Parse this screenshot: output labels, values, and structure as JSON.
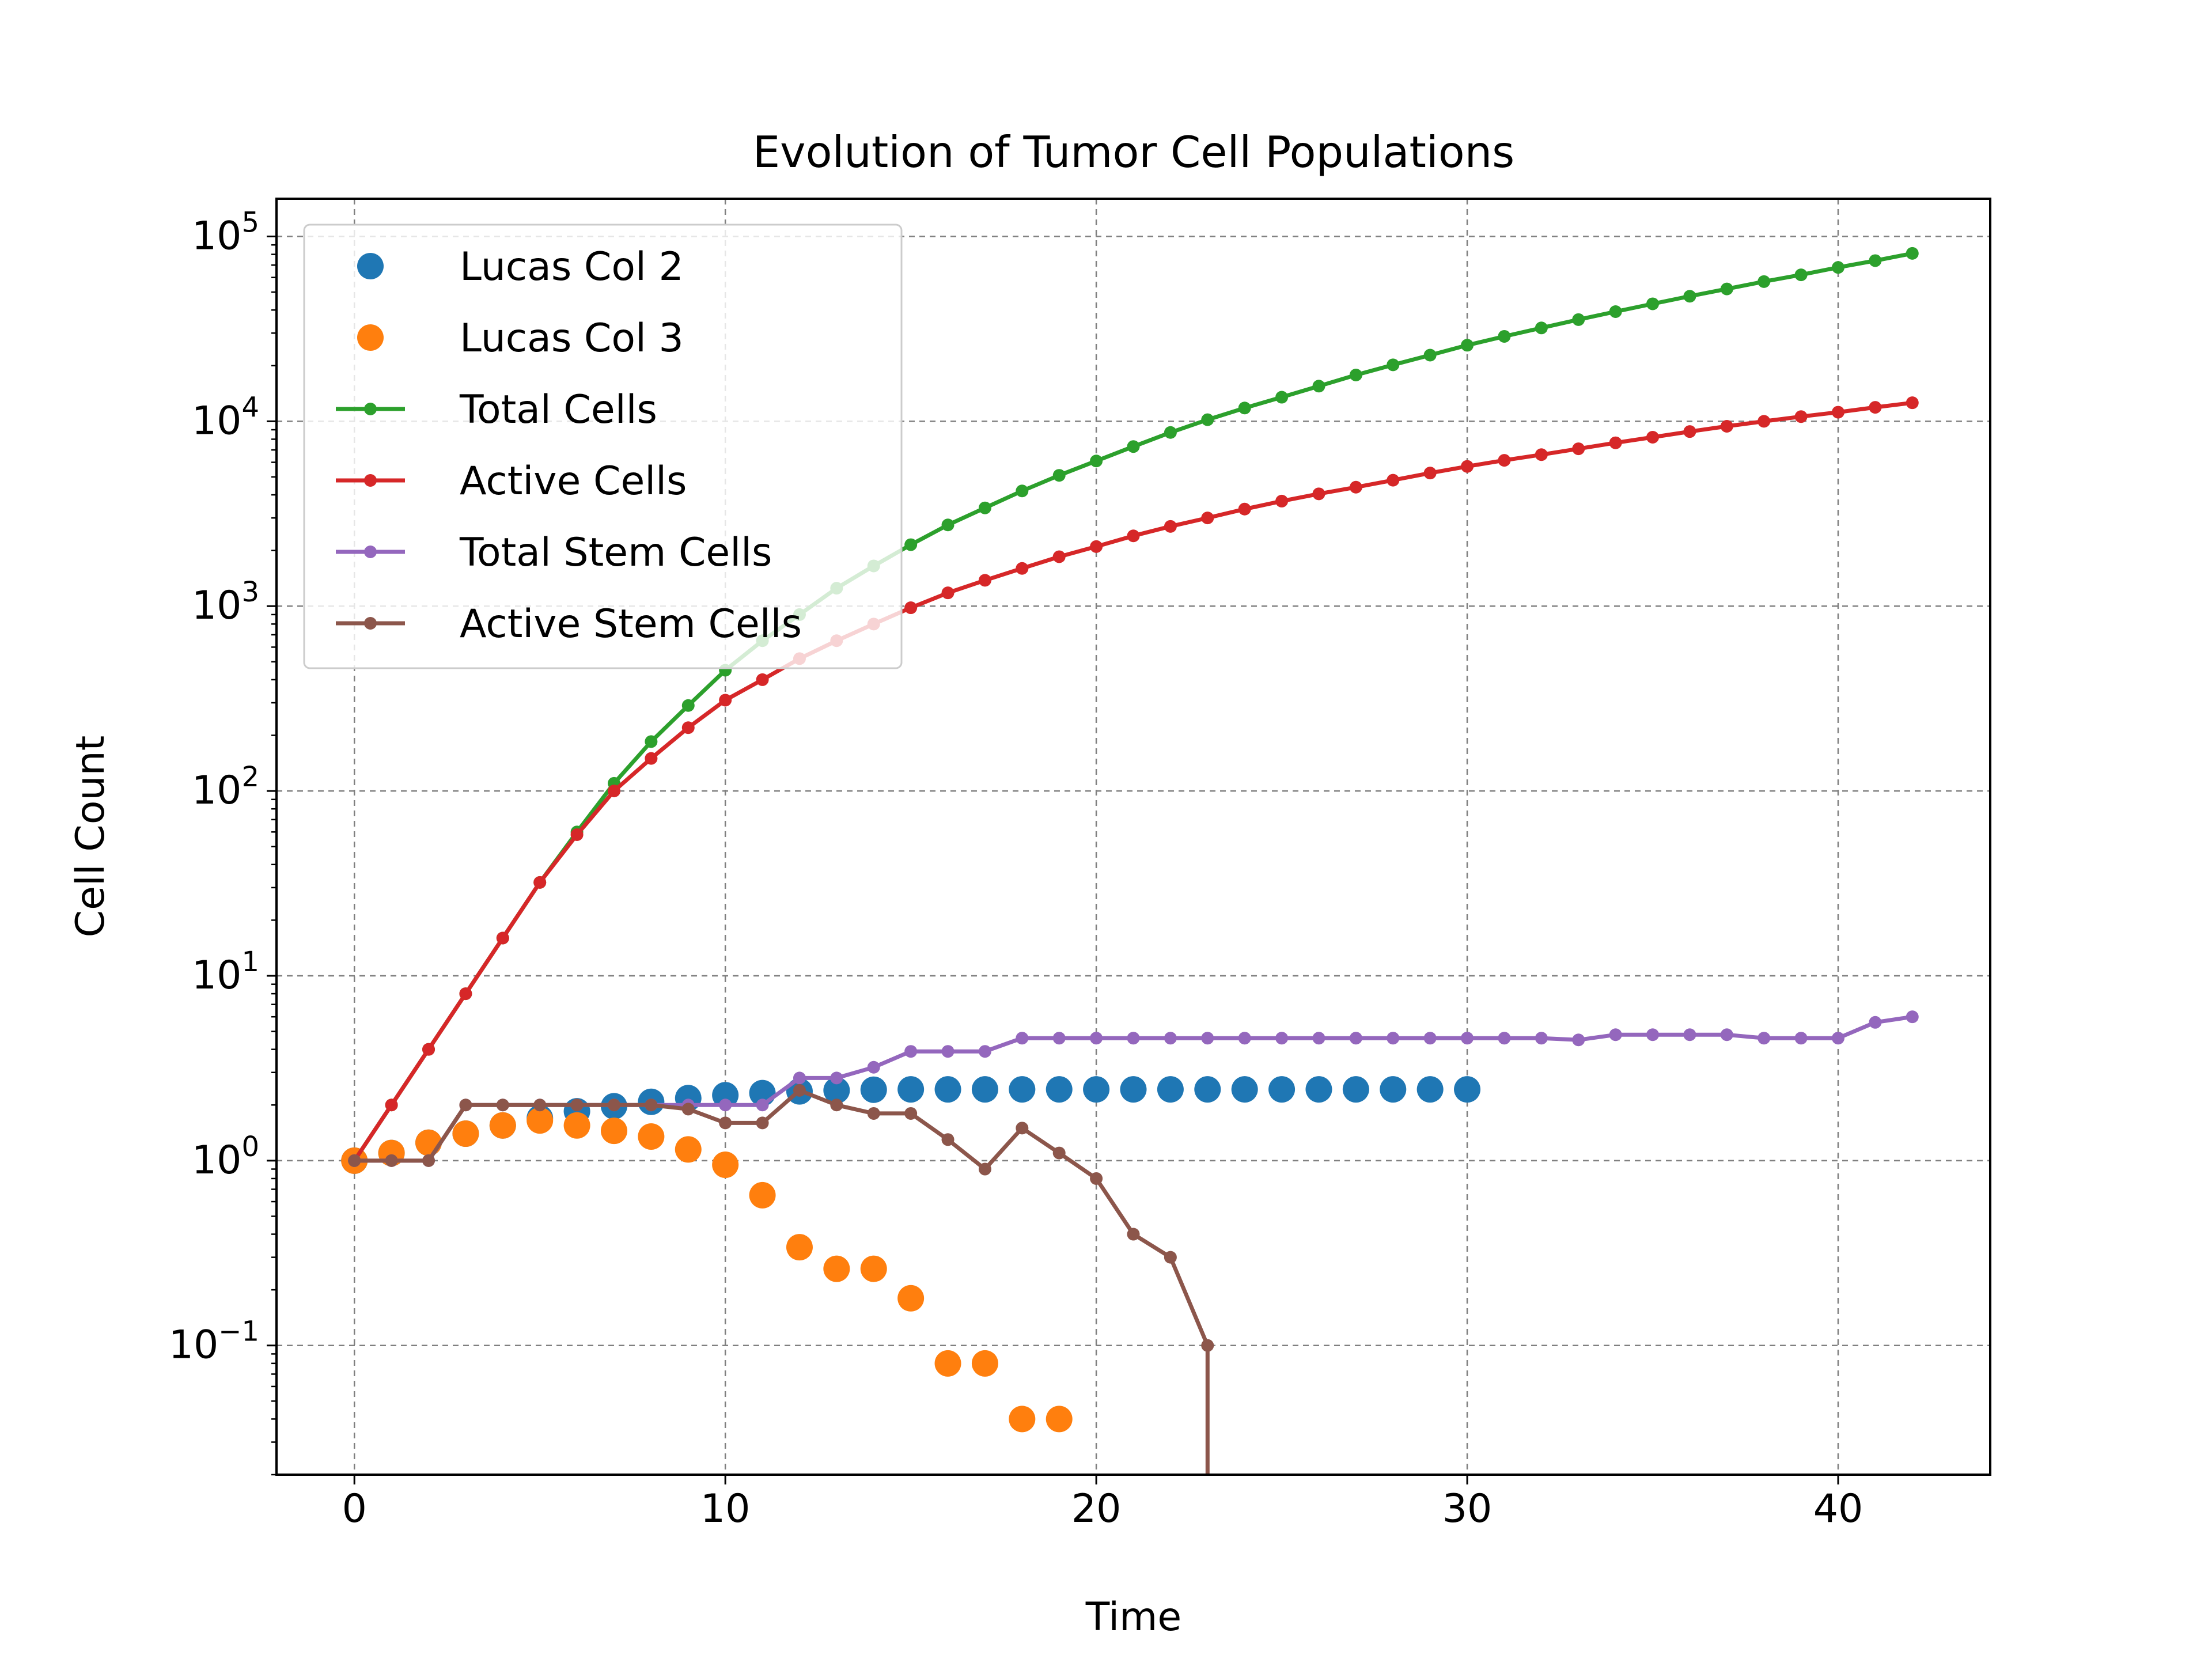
{
  "chart_data": {
    "type": "line",
    "title": "Evolution of Tumor Cell Populations",
    "xlabel": "Time",
    "ylabel": "Cell Count",
    "xlim": [
      -2.1,
      44.1
    ],
    "ylim": [
      0.02,
      160000
    ],
    "yscale": "log",
    "grid": true,
    "legend_position": "top-left",
    "x_ticks": [
      0,
      10,
      20,
      30,
      40
    ],
    "y_ticks": [
      {
        "value": 100000,
        "base": "10",
        "exp": "5"
      },
      {
        "value": 10000,
        "base": "10",
        "exp": "4"
      },
      {
        "value": 1000,
        "base": "10",
        "exp": "3"
      },
      {
        "value": 100,
        "base": "10",
        "exp": "2"
      },
      {
        "value": 10,
        "base": "10",
        "exp": "1"
      },
      {
        "value": 1,
        "base": "10",
        "exp": "0"
      },
      {
        "value": 0.1,
        "base": "10",
        "exp": "−1"
      }
    ],
    "series": [
      {
        "name": "Lucas Col 2",
        "style": "markers",
        "color": "#1f77b4",
        "x": [
          0,
          1,
          2,
          3,
          4,
          5,
          6,
          7,
          8,
          9,
          10,
          11,
          12,
          13,
          14,
          15,
          16,
          17,
          18,
          19,
          20,
          21,
          22,
          23,
          24,
          25,
          26,
          27,
          28,
          29,
          30
        ],
        "y": [
          1,
          1.1,
          1.25,
          1.4,
          1.55,
          1.7,
          1.85,
          1.97,
          2.08,
          2.18,
          2.26,
          2.32,
          2.37,
          2.4,
          2.42,
          2.43,
          2.43,
          2.43,
          2.43,
          2.43,
          2.43,
          2.43,
          2.43,
          2.43,
          2.43,
          2.43,
          2.43,
          2.43,
          2.43,
          2.43,
          2.43
        ]
      },
      {
        "name": "Lucas Col 3",
        "style": "markers",
        "color": "#ff7f0e",
        "x": [
          0,
          1,
          2,
          3,
          4,
          5,
          6,
          7,
          8,
          9,
          10,
          11,
          12,
          13,
          14,
          15,
          16,
          17,
          18,
          19
        ],
        "y": [
          1,
          1.1,
          1.25,
          1.4,
          1.55,
          1.65,
          1.55,
          1.45,
          1.35,
          1.15,
          0.95,
          0.65,
          0.34,
          0.26,
          0.26,
          0.18,
          0.08,
          0.08,
          0.04,
          0.04
        ]
      },
      {
        "name": "Total Cells",
        "style": "line-markers",
        "color": "#2ca02c",
        "x": [
          0,
          1,
          2,
          3,
          4,
          5,
          6,
          7,
          8,
          9,
          10,
          11,
          12,
          13,
          14,
          15,
          16,
          17,
          18,
          19,
          20,
          21,
          22,
          23,
          24,
          25,
          26,
          27,
          28,
          29,
          30,
          31,
          32,
          33,
          34,
          35,
          36,
          37,
          38,
          39,
          40,
          41,
          42
        ],
        "y": [
          1,
          2,
          4,
          8,
          16,
          32,
          60,
          110,
          185,
          290,
          450,
          650,
          900,
          1250,
          1650,
          2150,
          2750,
          3400,
          4200,
          5100,
          6100,
          7300,
          8700,
          10200,
          11800,
          13500,
          15500,
          17800,
          20200,
          22800,
          25800,
          28800,
          32000,
          35500,
          39200,
          43200,
          47500,
          52000,
          57000,
          62000,
          68000,
          74000,
          81000
        ]
      },
      {
        "name": "Active Cells",
        "style": "line-markers",
        "color": "#d62728",
        "x": [
          0,
          1,
          2,
          3,
          4,
          5,
          6,
          7,
          8,
          9,
          10,
          11,
          12,
          13,
          14,
          15,
          16,
          17,
          18,
          19,
          20,
          21,
          22,
          23,
          24,
          25,
          26,
          27,
          28,
          29,
          30,
          31,
          32,
          33,
          34,
          35,
          36,
          37,
          38,
          39,
          40,
          41,
          42
        ],
        "y": [
          1,
          2,
          4,
          8,
          16,
          32,
          58,
          100,
          150,
          220,
          310,
          400,
          520,
          650,
          800,
          980,
          1180,
          1380,
          1600,
          1850,
          2100,
          2400,
          2700,
          3000,
          3350,
          3700,
          4050,
          4400,
          4800,
          5250,
          5700,
          6150,
          6600,
          7100,
          7650,
          8200,
          8800,
          9400,
          10000,
          10600,
          11200,
          11900,
          12600
        ]
      },
      {
        "name": "Total Stem Cells",
        "style": "line-markers",
        "color": "#9467bd",
        "x": [
          0,
          1,
          2,
          3,
          4,
          5,
          6,
          7,
          8,
          9,
          10,
          11,
          12,
          13,
          14,
          15,
          16,
          17,
          18,
          19,
          20,
          21,
          22,
          23,
          24,
          25,
          26,
          27,
          28,
          29,
          30,
          31,
          32,
          33,
          34,
          35,
          36,
          37,
          38,
          39,
          40,
          41,
          42
        ],
        "y": [
          1,
          1,
          1,
          2,
          2,
          2,
          2,
          2,
          2,
          2,
          2,
          2,
          2.8,
          2.8,
          3.2,
          3.9,
          3.9,
          3.9,
          4.6,
          4.6,
          4.6,
          4.6,
          4.6,
          4.6,
          4.6,
          4.6,
          4.6,
          4.6,
          4.6,
          4.6,
          4.6,
          4.6,
          4.6,
          4.5,
          4.8,
          4.8,
          4.8,
          4.8,
          4.6,
          4.6,
          4.6,
          5.6,
          6
        ]
      },
      {
        "name": "Active Stem Cells",
        "style": "line-markers",
        "color": "#8c564b",
        "x": [
          0,
          1,
          2,
          3,
          4,
          5,
          6,
          7,
          8,
          9,
          10,
          11,
          12,
          13,
          14,
          15,
          16,
          17,
          18,
          19,
          20,
          21,
          22,
          23
        ],
        "y": [
          1,
          1,
          1,
          2,
          2,
          2,
          2,
          2,
          2,
          1.9,
          1.6,
          1.6,
          2.4,
          2,
          1.8,
          1.8,
          1.3,
          0.9,
          1.5,
          1.1,
          0.8,
          0.4,
          0.3,
          0.1
        ],
        "drop_to_zero_after": 23
      }
    ]
  }
}
